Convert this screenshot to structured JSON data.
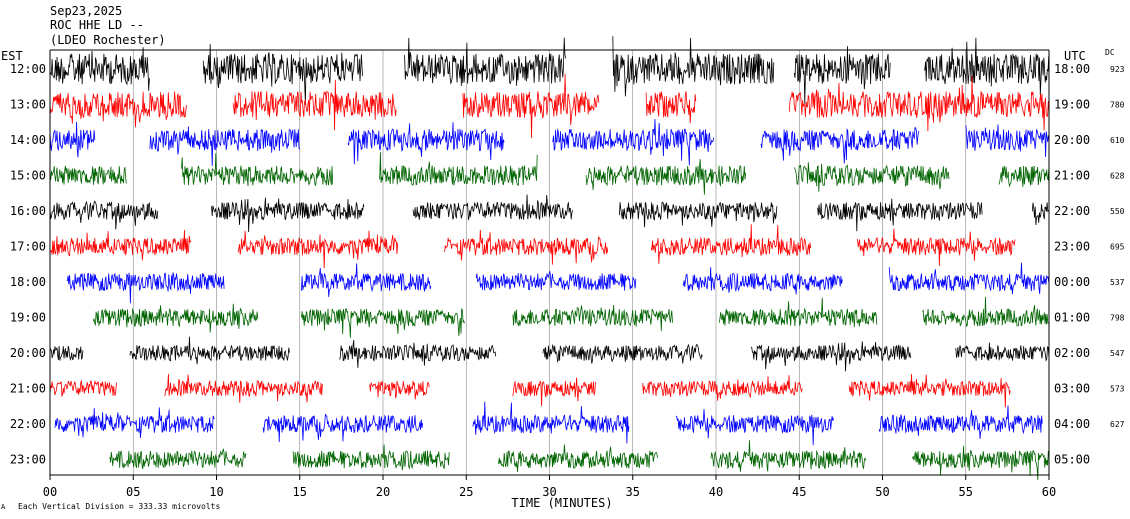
{
  "header": {
    "date": "Sep23,2025",
    "station": "ROC HHE LD --",
    "location": "(LDEO Rochester)"
  },
  "left_axis_label": "EST",
  "right_axis_label": "UTC",
  "dc_label": "DC",
  "footer_note": "Each Vertical Division = 333.33 microvolts",
  "footer_mark": "А",
  "colors": {
    "black": "#000000",
    "red": "#ff0000",
    "blue": "#0000ff",
    "green": "#006400",
    "grid": "#888888"
  },
  "chart_data": {
    "type": "line",
    "xlabel": "TIME (MINUTES)",
    "xlim": [
      0,
      60
    ],
    "x_ticks": [
      "00",
      "05",
      "10",
      "15",
      "20",
      "25",
      "30",
      "35",
      "40",
      "45",
      "50",
      "55",
      "60"
    ],
    "rows": [
      {
        "est": "12:00",
        "utc": "18:00",
        "dc": "923",
        "color": "black",
        "seg": [
          [
            0,
            6
          ],
          [
            9.2,
            18.8
          ],
          [
            21.3,
            31
          ],
          [
            33.8,
            43.5
          ],
          [
            44.7,
            50.5
          ],
          [
            52.5,
            60
          ]
        ],
        "amp": 1.4
      },
      {
        "est": "13:00",
        "utc": "19:00",
        "dc": "780",
        "color": "red",
        "seg": [
          [
            0,
            8.2
          ],
          [
            11,
            20.8
          ],
          [
            24.8,
            33
          ],
          [
            35.8,
            38.8
          ],
          [
            44.4,
            60
          ]
        ],
        "amp": 1.2
      },
      {
        "est": "14:00",
        "utc": "20:00",
        "dc": "610",
        "color": "blue",
        "seg": [
          [
            0,
            2.7
          ],
          [
            6,
            15
          ],
          [
            17.9,
            27.3
          ],
          [
            30.2,
            39.9
          ],
          [
            42.7,
            52.2
          ],
          [
            55,
            60
          ]
        ],
        "amp": 1.0
      },
      {
        "est": "15:00",
        "utc": "21:00",
        "dc": "628",
        "color": "green",
        "seg": [
          [
            0,
            4.6
          ],
          [
            7.9,
            17
          ],
          [
            19.8,
            29.3
          ],
          [
            32.2,
            41.8
          ],
          [
            44.7,
            54
          ],
          [
            57,
            60
          ]
        ],
        "amp": 0.9
      },
      {
        "est": "16:00",
        "utc": "22:00",
        "dc": "550",
        "color": "black",
        "seg": [
          [
            0,
            6.5
          ],
          [
            9.7,
            18.9
          ],
          [
            21.8,
            31.4
          ],
          [
            34.2,
            43.7
          ],
          [
            46.1,
            56
          ],
          [
            59,
            60
          ]
        ],
        "amp": 0.8
      },
      {
        "est": "17:00",
        "utc": "23:00",
        "dc": "695",
        "color": "red",
        "seg": [
          [
            0,
            8.5
          ],
          [
            11.3,
            20.9
          ],
          [
            23.7,
            33.5
          ],
          [
            36.1,
            45.7
          ],
          [
            48.5,
            58
          ]
        ],
        "amp": 0.8
      },
      {
        "est": "18:00",
        "utc": "00:00",
        "dc": "537",
        "color": "blue",
        "seg": [
          [
            1,
            10.5
          ],
          [
            15.1,
            22.9
          ],
          [
            25.6,
            35.2
          ],
          [
            38,
            47.6
          ],
          [
            50.4,
            60
          ]
        ],
        "amp": 0.8
      },
      {
        "est": "19:00",
        "utc": "01:00",
        "dc": "798",
        "color": "green",
        "seg": [
          [
            2.6,
            12.5
          ],
          [
            15.1,
            24.9
          ],
          [
            27.8,
            37.4
          ],
          [
            40.2,
            49.7
          ],
          [
            52.4,
            60
          ]
        ],
        "amp": 0.8
      },
      {
        "est": "20:00",
        "utc": "02:00",
        "dc": "547",
        "color": "black",
        "seg": [
          [
            0,
            2
          ],
          [
            4.8,
            14.4
          ],
          [
            17.4,
            26.8
          ],
          [
            29.6,
            39.2
          ],
          [
            42.1,
            51.7
          ],
          [
            54.4,
            60
          ]
        ],
        "amp": 0.7
      },
      {
        "est": "21:00",
        "utc": "03:00",
        "dc": "573",
        "color": "red",
        "seg": [
          [
            0,
            4
          ],
          [
            6.9,
            16.4
          ],
          [
            19.2,
            22.8
          ],
          [
            27.8,
            32.8
          ],
          [
            35.6,
            45.2
          ],
          [
            48,
            57.7
          ]
        ],
        "amp": 0.7
      },
      {
        "est": "22:00",
        "utc": "04:00",
        "dc": "627",
        "color": "blue",
        "seg": [
          [
            0.3,
            9.9
          ],
          [
            12.8,
            22.4
          ],
          [
            25.4,
            34.8
          ],
          [
            37.6,
            47.1
          ],
          [
            49.8,
            59.6
          ]
        ],
        "amp": 0.8
      },
      {
        "est": "23:00",
        "utc": "05:00",
        "dc": "",
        "color": "green",
        "seg": [
          [
            3.6,
            11.8
          ],
          [
            14.6,
            24
          ],
          [
            26.9,
            36.5
          ],
          [
            39.7,
            49
          ],
          [
            51.8,
            60
          ]
        ],
        "amp": 0.8
      }
    ]
  }
}
